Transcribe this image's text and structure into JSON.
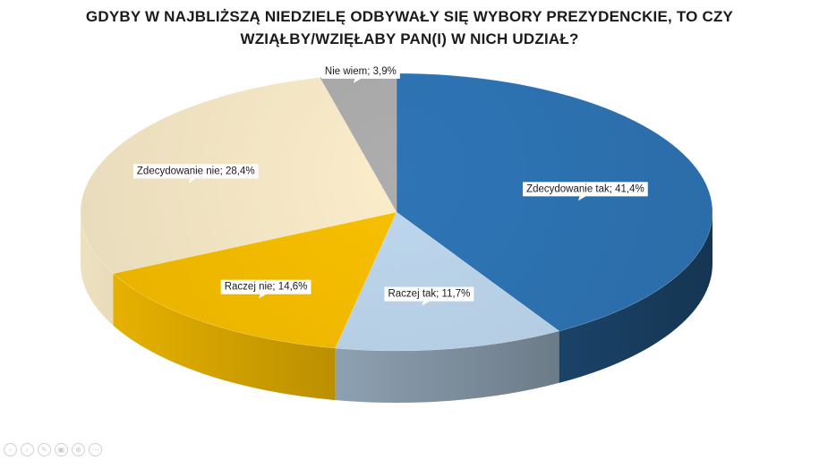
{
  "chart_data": {
    "type": "pie",
    "title_lines": [
      "GDYBY W NAJBLIŻSZĄ NIEDZIELĘ ODBYWAŁY SIĘ WYBORY PREZYDENCKIE, TO CZY",
      "WZIĄŁBY/WZIĘŁABY PAN(I) W NICH UDZIAŁ?"
    ],
    "slices": [
      {
        "name": "Zdecydowanie tak",
        "value": 41.4,
        "label": "Zdecydowanie tak; 41,4%",
        "color": "#2e75b6"
      },
      {
        "name": "Raczej tak",
        "value": 11.7,
        "label": "Raczej tak; 11,7%",
        "color": "#bdd7ee"
      },
      {
        "name": "Raczej nie",
        "value": 14.6,
        "label": "Raczej nie; 14,6%",
        "color": "#f9c000"
      },
      {
        "name": "Zdecydowanie nie",
        "value": 28.4,
        "label": "Zdecydowanie nie; 28,4%",
        "color": "#fbedca"
      },
      {
        "name": "Nie wiem",
        "value": 3.9,
        "label": "Nie wiem; 3,9%",
        "color": "#adadad"
      }
    ],
    "style": "3d-pie",
    "legend": "none"
  },
  "toolbar_icons": [
    "prev-icon",
    "next-icon",
    "pen-icon",
    "slides-icon",
    "zoom-icon",
    "more-icon"
  ]
}
